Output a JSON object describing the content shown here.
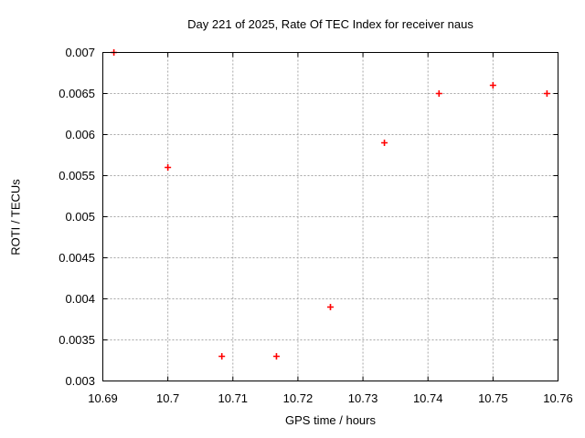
{
  "page": {
    "background": "#ffffff"
  },
  "chart_data": {
    "type": "scatter",
    "title": "Day 221 of 2025, Rate Of TEC Index for receiver naus",
    "xlabel": "GPS time / hours",
    "ylabel": "ROTI / TECUs",
    "xlim": [
      10.69,
      10.76
    ],
    "ylim": [
      0.003,
      0.007
    ],
    "xticks": [
      10.69,
      10.7,
      10.71,
      10.72,
      10.73,
      10.74,
      10.75,
      10.76
    ],
    "xtick_labels": [
      "10.69",
      "10.7",
      "10.71",
      "10.72",
      "10.73",
      "10.74",
      "10.75",
      "10.76"
    ],
    "yticks": [
      0.003,
      0.0035,
      0.004,
      0.0045,
      0.005,
      0.0055,
      0.006,
      0.0065,
      0.007
    ],
    "ytick_labels": [
      "0.003",
      "0.0035",
      "0.004",
      "0.0045",
      "0.005",
      "0.0055",
      "0.006",
      "0.0065",
      "0.007"
    ],
    "grid": true,
    "legend": "none",
    "marker": {
      "shape": "plus",
      "color": "#ff0000",
      "size": 7
    },
    "series": [
      {
        "name": "ROTI",
        "points": [
          {
            "x": 10.6917,
            "y": 0.007
          },
          {
            "x": 10.7,
            "y": 0.0056
          },
          {
            "x": 10.7083,
            "y": 0.0033
          },
          {
            "x": 10.7167,
            "y": 0.0033
          },
          {
            "x": 10.725,
            "y": 0.0039
          },
          {
            "x": 10.7333,
            "y": 0.0059
          },
          {
            "x": 10.7417,
            "y": 0.0065
          },
          {
            "x": 10.75,
            "y": 0.0066
          },
          {
            "x": 10.7583,
            "y": 0.0065
          }
        ]
      }
    ],
    "colors": {
      "grid": "#a6a6a6",
      "axis": "#000000",
      "text": "#000000",
      "marker": "#ff0000"
    }
  }
}
